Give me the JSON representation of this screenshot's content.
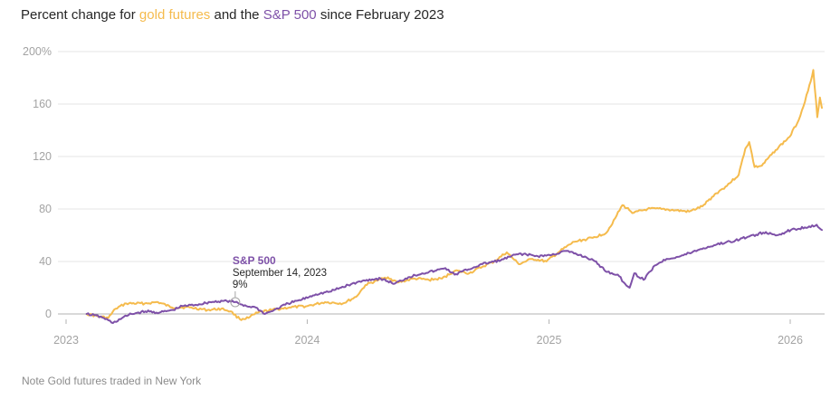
{
  "title": {
    "prefix": "Percent change for ",
    "gold_label": "gold futures",
    "middle": " and the ",
    "spx_label": "S&P 500",
    "suffix": " since February 2023"
  },
  "note": "Note Gold futures traded in New York",
  "colors": {
    "gold": "#f5bb4d",
    "spx": "#7e51a8",
    "grid": "#e6e6e6",
    "axis": "#b3b3b3"
  },
  "chart_data": {
    "type": "line",
    "title": "Percent change for gold futures and the S&P 500 since February 2023",
    "xlabel": "",
    "ylabel": "Percent change",
    "ylim": [
      -10,
      200
    ],
    "xlim": [
      "2023-01-01",
      "2026-02-20"
    ],
    "grid": true,
    "legend": "inline-title",
    "y_ticks": [
      {
        "value": 0,
        "label": "0"
      },
      {
        "value": 40,
        "label": "40"
      },
      {
        "value": 80,
        "label": "80"
      },
      {
        "value": 120,
        "label": "120"
      },
      {
        "value": 160,
        "label": "160"
      },
      {
        "value": 200,
        "label": "200%"
      }
    ],
    "x_ticks": [
      {
        "value": "2023-01-01",
        "label": "2023"
      },
      {
        "value": "2024-01-01",
        "label": "2024"
      },
      {
        "value": "2025-01-01",
        "label": "2025"
      },
      {
        "value": "2026-01-01",
        "label": "2026"
      }
    ],
    "series": [
      {
        "name": "Gold futures",
        "color": "#f5bb4d",
        "points": [
          [
            "2023-02-01",
            0
          ],
          [
            "2023-02-20",
            -2
          ],
          [
            "2023-03-06",
            -3
          ],
          [
            "2023-03-17",
            4
          ],
          [
            "2023-04-02",
            8
          ],
          [
            "2023-04-30",
            8
          ],
          [
            "2023-05-20",
            9
          ],
          [
            "2023-06-10",
            5
          ],
          [
            "2023-07-07",
            5
          ],
          [
            "2023-08-03",
            3
          ],
          [
            "2023-08-24",
            4
          ],
          [
            "2023-09-07",
            2
          ],
          [
            "2023-09-21",
            -4
          ],
          [
            "2023-10-04",
            -3
          ],
          [
            "2023-10-18",
            1
          ],
          [
            "2023-11-08",
            3
          ],
          [
            "2023-12-05",
            5
          ],
          [
            "2024-01-01",
            6
          ],
          [
            "2024-01-28",
            9
          ],
          [
            "2024-02-24",
            8
          ],
          [
            "2024-03-15",
            13
          ],
          [
            "2024-03-29",
            22
          ],
          [
            "2024-04-18",
            26
          ],
          [
            "2024-05-02",
            28
          ],
          [
            "2024-05-16",
            24
          ],
          [
            "2024-06-12",
            27
          ],
          [
            "2024-07-03",
            26
          ],
          [
            "2024-07-23",
            27
          ],
          [
            "2024-08-12",
            33
          ],
          [
            "2024-09-02",
            31
          ],
          [
            "2024-09-22",
            36
          ],
          [
            "2024-10-10",
            40
          ],
          [
            "2024-10-29",
            47
          ],
          [
            "2024-11-16",
            38
          ],
          [
            "2024-12-07",
            42
          ],
          [
            "2024-12-28",
            40
          ],
          [
            "2025-01-18",
            48
          ],
          [
            "2025-02-08",
            55
          ],
          [
            "2025-03-08",
            58
          ],
          [
            "2025-03-29",
            62
          ],
          [
            "2025-04-11",
            73
          ],
          [
            "2025-04-22",
            83
          ],
          [
            "2025-05-09",
            77
          ],
          [
            "2025-05-30",
            80
          ],
          [
            "2025-06-20",
            80
          ],
          [
            "2025-07-11",
            79
          ],
          [
            "2025-08-01",
            78
          ],
          [
            "2025-08-21",
            82
          ],
          [
            "2025-09-11",
            92
          ],
          [
            "2025-09-25",
            97
          ],
          [
            "2025-10-15",
            106
          ],
          [
            "2025-10-25",
            126
          ],
          [
            "2025-10-31",
            131
          ],
          [
            "2025-11-08",
            112
          ],
          [
            "2025-11-19",
            113
          ],
          [
            "2025-12-10",
            125
          ],
          [
            "2025-12-31",
            135
          ],
          [
            "2026-01-14",
            148
          ],
          [
            "2026-01-28",
            170
          ],
          [
            "2026-02-05",
            186
          ],
          [
            "2026-02-11",
            150
          ],
          [
            "2026-02-15",
            165
          ],
          [
            "2026-02-18",
            157
          ]
        ]
      },
      {
        "name": "S&P 500",
        "color": "#7e51a8",
        "points": [
          [
            "2023-02-01",
            0
          ],
          [
            "2023-02-13",
            -1
          ],
          [
            "2023-02-27",
            -3
          ],
          [
            "2023-03-13",
            -7
          ],
          [
            "2023-03-27",
            -3
          ],
          [
            "2023-04-10",
            0
          ],
          [
            "2023-05-01",
            2
          ],
          [
            "2023-05-22",
            1
          ],
          [
            "2023-06-12",
            3
          ],
          [
            "2023-06-26",
            6
          ],
          [
            "2023-07-17",
            7
          ],
          [
            "2023-08-07",
            9
          ],
          [
            "2023-08-28",
            10
          ],
          [
            "2023-09-14",
            9
          ],
          [
            "2023-10-01",
            6
          ],
          [
            "2023-10-15",
            5
          ],
          [
            "2023-10-29",
            0
          ],
          [
            "2023-11-12",
            3
          ],
          [
            "2023-12-03",
            8
          ],
          [
            "2023-12-24",
            11
          ],
          [
            "2024-01-14",
            15
          ],
          [
            "2024-02-04",
            17
          ],
          [
            "2024-03-03",
            22
          ],
          [
            "2024-03-31",
            26
          ],
          [
            "2024-04-21",
            27
          ],
          [
            "2024-05-12",
            23
          ],
          [
            "2024-06-02",
            28
          ],
          [
            "2024-06-23",
            31
          ],
          [
            "2024-07-14",
            33
          ],
          [
            "2024-07-28",
            35
          ],
          [
            "2024-08-11",
            30
          ],
          [
            "2024-09-01",
            34
          ],
          [
            "2024-09-22",
            38
          ],
          [
            "2024-10-20",
            41
          ],
          [
            "2024-11-17",
            46
          ],
          [
            "2024-12-15",
            44
          ],
          [
            "2025-01-05",
            45
          ],
          [
            "2025-01-26",
            48
          ],
          [
            "2025-02-16",
            45
          ],
          [
            "2025-03-09",
            41
          ],
          [
            "2025-03-30",
            32
          ],
          [
            "2025-04-15",
            30
          ],
          [
            "2025-04-26",
            23
          ],
          [
            "2025-05-03",
            20
          ],
          [
            "2025-05-10",
            31
          ],
          [
            "2025-05-24",
            26
          ],
          [
            "2025-06-10",
            37
          ],
          [
            "2025-06-28",
            42
          ],
          [
            "2025-07-19",
            44
          ],
          [
            "2025-08-16",
            49
          ],
          [
            "2025-09-12",
            53
          ],
          [
            "2025-10-10",
            56
          ],
          [
            "2025-10-31",
            59
          ],
          [
            "2025-11-21",
            62
          ],
          [
            "2025-12-12",
            60
          ],
          [
            "2026-01-02",
            64
          ],
          [
            "2026-01-23",
            66
          ],
          [
            "2026-02-10",
            68
          ],
          [
            "2026-02-18",
            64
          ]
        ]
      }
    ],
    "annotations": [
      {
        "series": "S&P 500",
        "label": "S&P 500",
        "date": "2023-09-14",
        "date_label": "September 14, 2023",
        "value": 9,
        "value_label": "9%"
      }
    ]
  }
}
